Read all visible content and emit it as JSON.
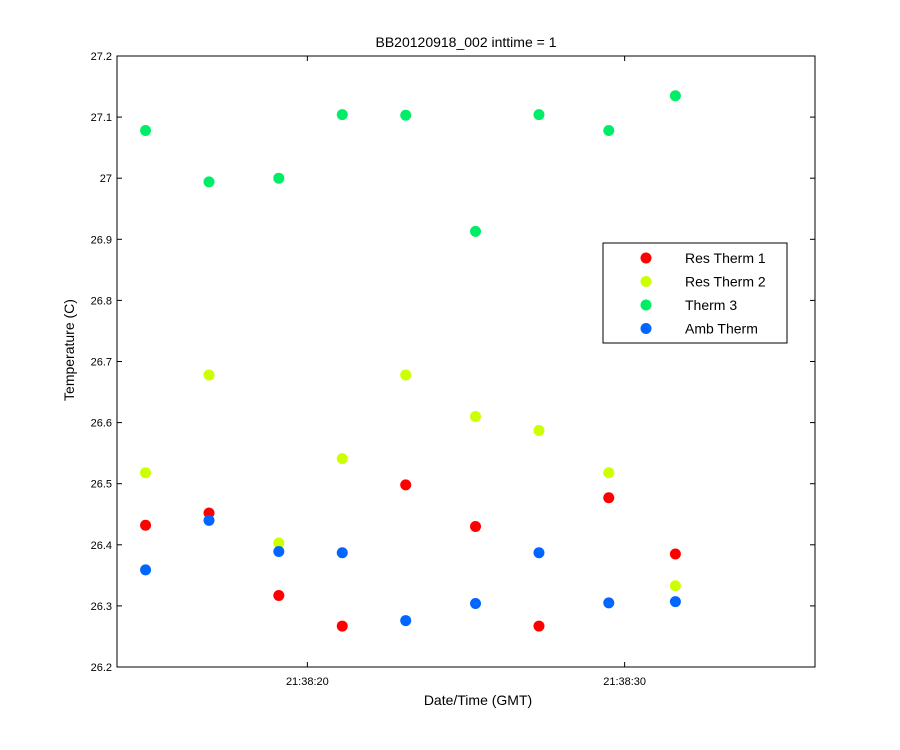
{
  "chart_data": {
    "type": "scatter",
    "title": "BB20120918_002 inttime = 1",
    "xlabel": "Date/Time (GMT)",
    "ylabel": "Temperature (C)",
    "xlim": [
      "21:38:14",
      "21:38:36"
    ],
    "ylim": [
      26.2,
      27.2
    ],
    "y_ticks": [
      "26.2",
      "26.3",
      "26.4",
      "26.5",
      "26.6",
      "26.7",
      "26.8",
      "26.9",
      "27",
      "27.1",
      "27.2"
    ],
    "x_ticks": [
      "21:38:20",
      "21:38:30"
    ],
    "x": [
      "21:38:14.9",
      "21:38:16.9",
      "21:38:19.1",
      "21:38:21.1",
      "21:38:23.1",
      "21:38:25.3",
      "21:38:27.3",
      "21:38:29.5",
      "21:38:31.6"
    ],
    "legend": {
      "location": "right"
    },
    "grid": false,
    "series": [
      {
        "name": "Res Therm 1",
        "color": "#ff0000",
        "values": [
          26.432,
          26.452,
          26.317,
          26.267,
          26.498,
          26.43,
          26.267,
          26.477,
          26.385
        ]
      },
      {
        "name": "Res Therm 2",
        "color": "#ccff00",
        "values": [
          26.518,
          26.678,
          26.403,
          26.541,
          26.678,
          26.61,
          26.587,
          26.518,
          26.333
        ]
      },
      {
        "name": "Therm 3",
        "color": "#00ee66",
        "values": [
          27.078,
          26.994,
          27.0,
          27.104,
          27.103,
          26.913,
          27.104,
          27.078,
          27.135
        ]
      },
      {
        "name": "Amb Therm",
        "color": "#0066ff",
        "values": [
          26.359,
          26.44,
          26.389,
          26.387,
          26.276,
          26.304,
          26.387,
          26.305,
          26.307
        ]
      }
    ]
  }
}
